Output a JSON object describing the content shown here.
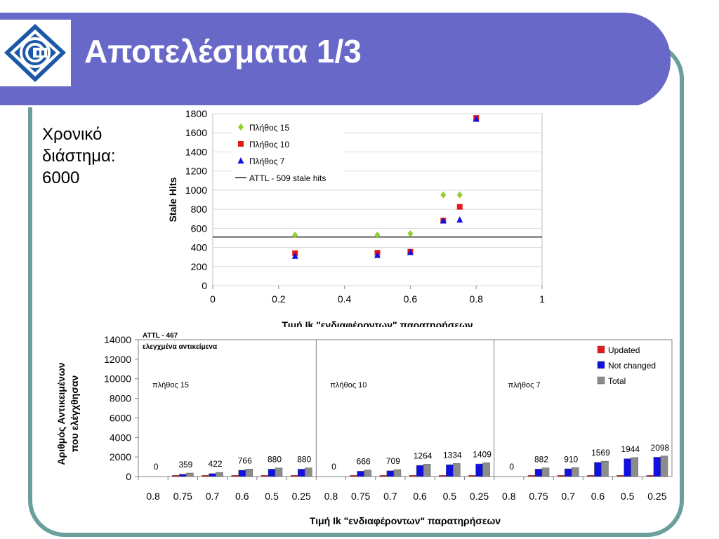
{
  "slide": {
    "title": "Αποτελέσματα 1/3",
    "side_lines": [
      "Χρονικό",
      "διάστημα:",
      "6000"
    ]
  },
  "colors": {
    "header": "#6868c8",
    "frame": "#6a9f9c",
    "logo": "#1d58a8",
    "updated": "#e41a1a",
    "not_changed": "#1010e0",
    "total": "#8c8c8c",
    "n15": "#8fd12c",
    "n10": "#e41a1a",
    "n7": "#1010e0"
  },
  "icons": {
    "logo": "university-emblem-icon"
  },
  "chart_data": [
    {
      "type": "scatter",
      "xlabel": "Τιμή Ik \"ενδιαφέροντων\" παρατηρήσεων",
      "ylabel": "Stale Hits",
      "xlim": [
        0,
        1
      ],
      "ylim": [
        0,
        1800
      ],
      "xticks": [
        "0",
        "0.2",
        "0.4",
        "0.6",
        "0.8",
        "1"
      ],
      "yticks": [
        "0",
        "200",
        "400",
        "600",
        "800",
        "1000",
        "1200",
        "1400",
        "1600",
        "1800"
      ],
      "grid": "horizontal",
      "legend_position": "top-left",
      "series": [
        {
          "name": "Πλήθος 15",
          "marker": "diamond",
          "points": [
            [
              0.25,
              530
            ],
            [
              0.5,
              530
            ],
            [
              0.6,
              545
            ],
            [
              0.7,
              950
            ],
            [
              0.75,
              950
            ],
            [
              0.8,
              1750
            ]
          ]
        },
        {
          "name": "Πλήθος 10",
          "marker": "square",
          "points": [
            [
              0.25,
              340
            ],
            [
              0.5,
              345
            ],
            [
              0.6,
              355
            ],
            [
              0.7,
              680
            ],
            [
              0.75,
              825
            ],
            [
              0.8,
              1755
            ]
          ]
        },
        {
          "name": "Πλήθος 7",
          "marker": "triangle",
          "points": [
            [
              0.25,
              310
            ],
            [
              0.5,
              320
            ],
            [
              0.6,
              350
            ],
            [
              0.7,
              680
            ],
            [
              0.75,
              690
            ],
            [
              0.8,
              1745
            ]
          ]
        }
      ],
      "reference_line": {
        "name": "ATTL - 509 stale hits",
        "y": 509
      }
    },
    {
      "type": "bar",
      "xlabel": "Τιμή Ik \"ενδιαφέροντων\" παρατηρήσεων",
      "ylabel": "Αριθμός Αντικειμένων που ελέγχθησαν",
      "ylim": [
        0,
        14000
      ],
      "yticks": [
        "0",
        "2000",
        "4000",
        "6000",
        "8000",
        "10000",
        "12000",
        "14000"
      ],
      "annotation": [
        "ATTL - 467",
        "ελεγχμένα αντικείμενα"
      ],
      "legend_position": "top-right",
      "series_names": [
        "Updated",
        "Not changed",
        "Total"
      ],
      "groups": [
        {
          "label": "πλήθος 15",
          "categories": [
            "0.8",
            "0.75",
            "0.7",
            "0.6",
            "0.5",
            "0.25"
          ],
          "updated": [
            0,
            120,
            120,
            120,
            120,
            120
          ],
          "not_changed": [
            0,
            240,
            300,
            646,
            760,
            760
          ],
          "total": [
            0,
            359,
            422,
            766,
            880,
            880
          ]
        },
        {
          "label": "πλήθος 10",
          "categories": [
            "0.8",
            "0.75",
            "0.7",
            "0.6",
            "0.5",
            "0.25"
          ],
          "updated": [
            0,
            120,
            120,
            120,
            120,
            120
          ],
          "not_changed": [
            0,
            546,
            589,
            1144,
            1214,
            1289
          ],
          "total": [
            0,
            666,
            709,
            1264,
            1334,
            1409
          ]
        },
        {
          "label": "πλήθος 7",
          "categories": [
            "0.8",
            "0.75",
            "0.7",
            "0.6",
            "0.5",
            "0.25"
          ],
          "updated": [
            0,
            120,
            120,
            120,
            120,
            120
          ],
          "not_changed": [
            0,
            762,
            790,
            1449,
            1824,
            1978
          ],
          "total": [
            0,
            882,
            910,
            1569,
            1944,
            2098
          ]
        }
      ]
    }
  ]
}
